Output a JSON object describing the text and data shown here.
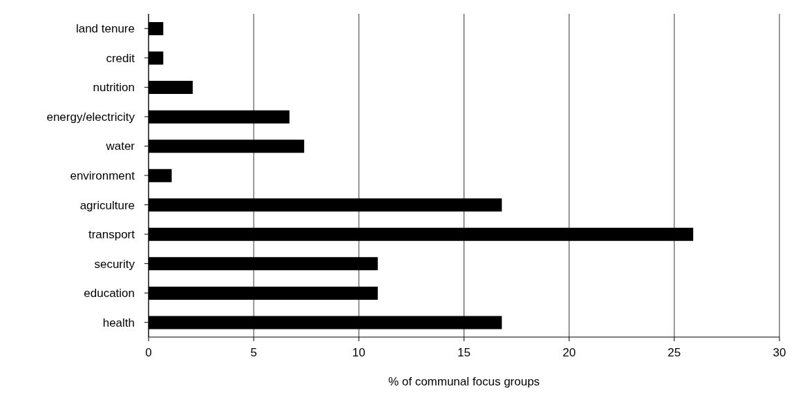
{
  "chart_data": {
    "type": "bar",
    "orientation": "horizontal",
    "xlabel": "% of communal focus groups",
    "categories": [
      "land tenure",
      "credit",
      "nutrition",
      "energy/electricity",
      "water",
      "environment",
      "agriculture",
      "transport",
      "security",
      "education",
      "health"
    ],
    "values": [
      0.7,
      0.7,
      2.1,
      6.7,
      7.4,
      1.1,
      16.8,
      25.9,
      10.9,
      10.9,
      16.8
    ],
    "color": "#000000",
    "xlim": [
      0,
      30
    ],
    "xticks": [
      0,
      5,
      10,
      15,
      20,
      25,
      30
    ],
    "grid": "x"
  }
}
